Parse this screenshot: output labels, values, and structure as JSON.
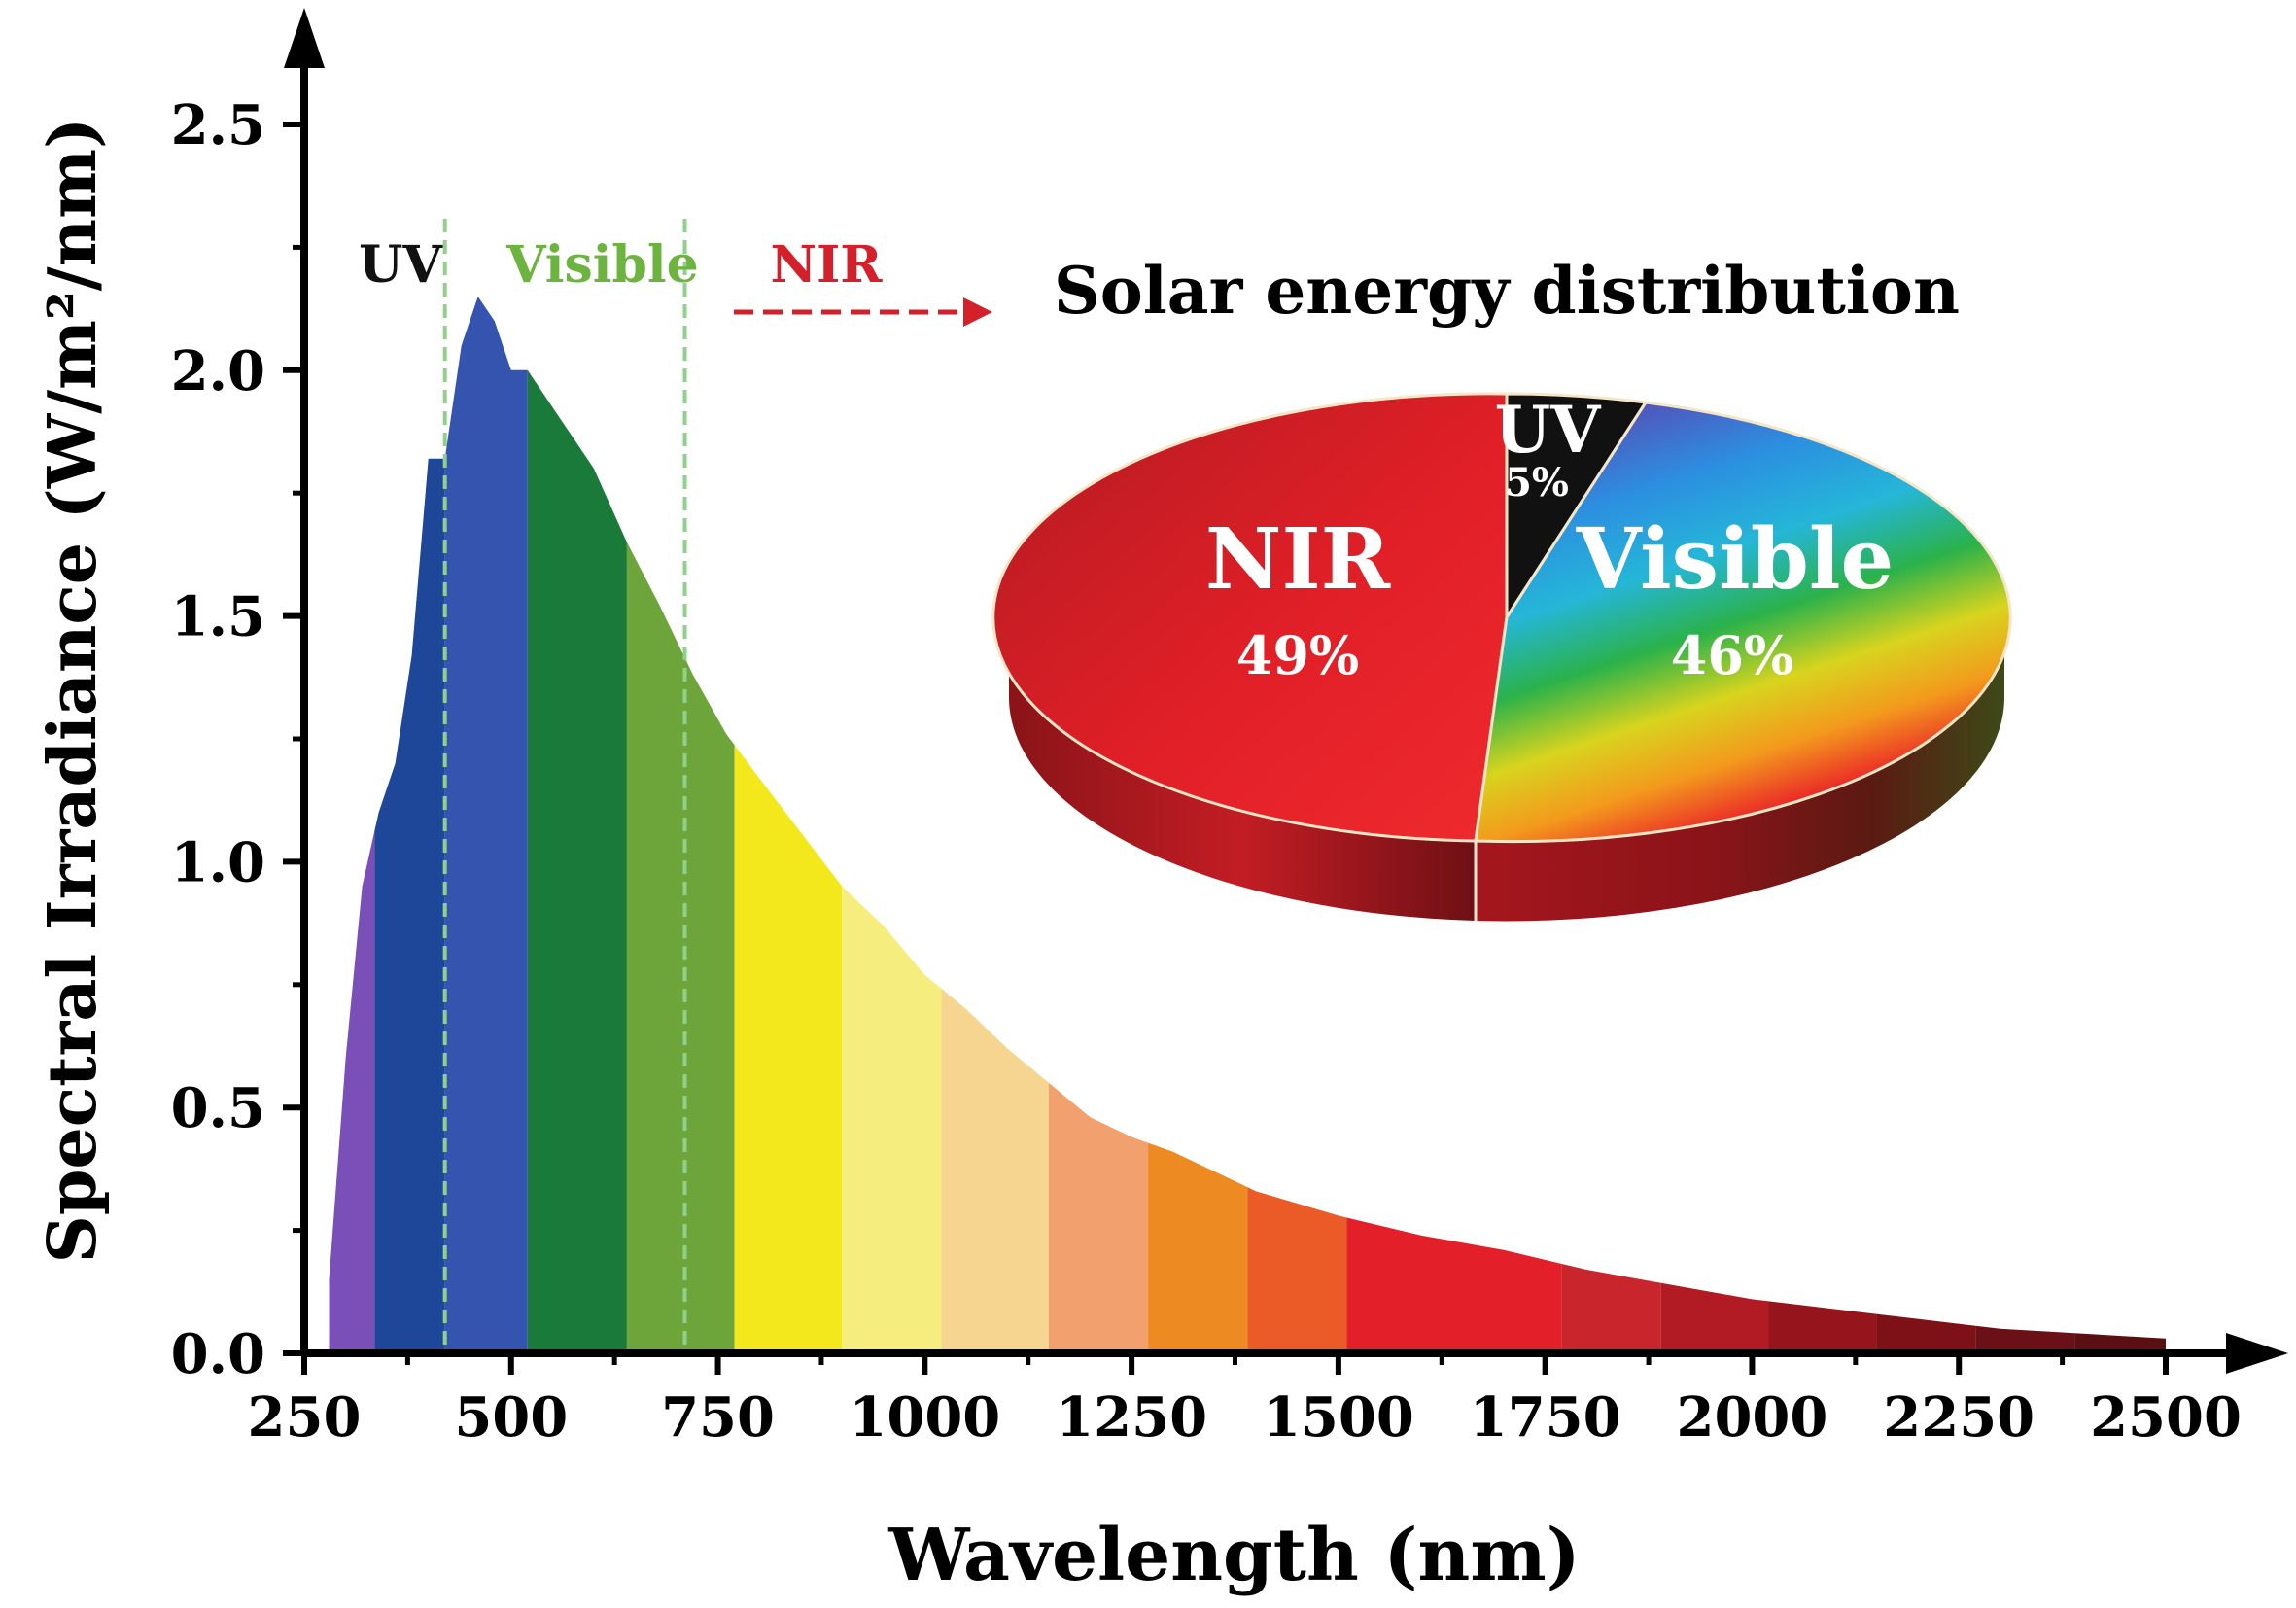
{
  "chart_data": [
    {
      "type": "area",
      "xlabel": "Wavelength (nm)",
      "ylabel": "Spectral Irradiance (W/m²/nm)",
      "xlim": [
        250,
        2500
      ],
      "ylim": [
        0,
        2.5
      ],
      "x_ticks": [
        "250",
        "500",
        "750",
        "1000",
        "1250",
        "1500",
        "1750",
        "2000",
        "2250",
        "2500"
      ],
      "y_ticks": [
        "0.0",
        "0.5",
        "1.0",
        "1.5",
        "2.0",
        "2.5"
      ],
      "grid": false,
      "region_labels": [
        {
          "text": "UV",
          "color": "#111111"
        },
        {
          "text": "Visible",
          "color": "#6db33f"
        },
        {
          "text": "NIR",
          "color": "#d3202a"
        }
      ],
      "region_boundaries": [
        {
          "x": 420,
          "color": "#8fd08a"
        },
        {
          "x": 710,
          "color": "#8fd08a"
        }
      ],
      "series": [
        {
          "x": [
            280,
            300,
            320,
            340,
            360,
            380,
            400,
            420,
            440,
            460,
            480,
            500,
            520,
            540,
            560,
            580,
            600,
            640,
            680,
            720,
            760,
            800,
            850,
            900,
            950,
            1000,
            1050,
            1100,
            1150,
            1200,
            1250,
            1300,
            1400,
            1500,
            1600,
            1700,
            1800,
            1900,
            2000,
            2100,
            2200,
            2300,
            2400,
            2500
          ],
          "y": [
            0.15,
            0.6,
            0.95,
            1.1,
            1.2,
            1.42,
            1.82,
            1.82,
            2.05,
            2.15,
            2.1,
            2.0,
            2.0,
            1.95,
            1.9,
            1.85,
            1.8,
            1.65,
            1.52,
            1.38,
            1.26,
            1.17,
            1.06,
            0.95,
            0.87,
            0.77,
            0.7,
            0.62,
            0.55,
            0.48,
            0.44,
            0.41,
            0.33,
            0.28,
            0.24,
            0.21,
            0.17,
            0.14,
            0.11,
            0.09,
            0.07,
            0.05,
            0.04,
            0.03
          ]
        }
      ],
      "color_bands": [
        {
          "from": 280,
          "to": 335,
          "color": "#7b4fb8"
        },
        {
          "from": 335,
          "to": 420,
          "color": "#1f4799"
        },
        {
          "from": 420,
          "to": 520,
          "color": "#3554b0"
        },
        {
          "from": 520,
          "to": 640,
          "color": "#1a7a3a"
        },
        {
          "from": 640,
          "to": 770,
          "color": "#6ea53a"
        },
        {
          "from": 770,
          "to": 900,
          "color": "#f2e81b"
        },
        {
          "from": 900,
          "to": 1020,
          "color": "#f5ee7e"
        },
        {
          "from": 1020,
          "to": 1150,
          "color": "#f5d58f"
        },
        {
          "from": 1150,
          "to": 1270,
          "color": "#f2a06e"
        },
        {
          "from": 1270,
          "to": 1390,
          "color": "#ee8a22"
        },
        {
          "from": 1390,
          "to": 1510,
          "color": "#eb5b27"
        },
        {
          "from": 1510,
          "to": 1770,
          "color": "#e3202a"
        },
        {
          "from": 1770,
          "to": 1890,
          "color": "#c8252c"
        },
        {
          "from": 1890,
          "to": 2020,
          "color": "#b21a24"
        },
        {
          "from": 2020,
          "to": 2150,
          "color": "#96151c"
        },
        {
          "from": 2150,
          "to": 2270,
          "color": "#7d1117"
        },
        {
          "from": 2270,
          "to": 2390,
          "color": "#6a1016"
        },
        {
          "from": 2390,
          "to": 2500,
          "color": "#5a1013"
        }
      ]
    },
    {
      "type": "pie",
      "title": "Solar energy distribution",
      "slices": [
        {
          "label": "NIR",
          "value": 49,
          "value_label": "49%",
          "color": "#e3202a"
        },
        {
          "label": "UV",
          "value": 5,
          "value_label": "5%",
          "color": "#111111"
        },
        {
          "label": "Visible",
          "value": 46,
          "value_label": "46%",
          "color": "#3aa8d8"
        }
      ]
    }
  ]
}
